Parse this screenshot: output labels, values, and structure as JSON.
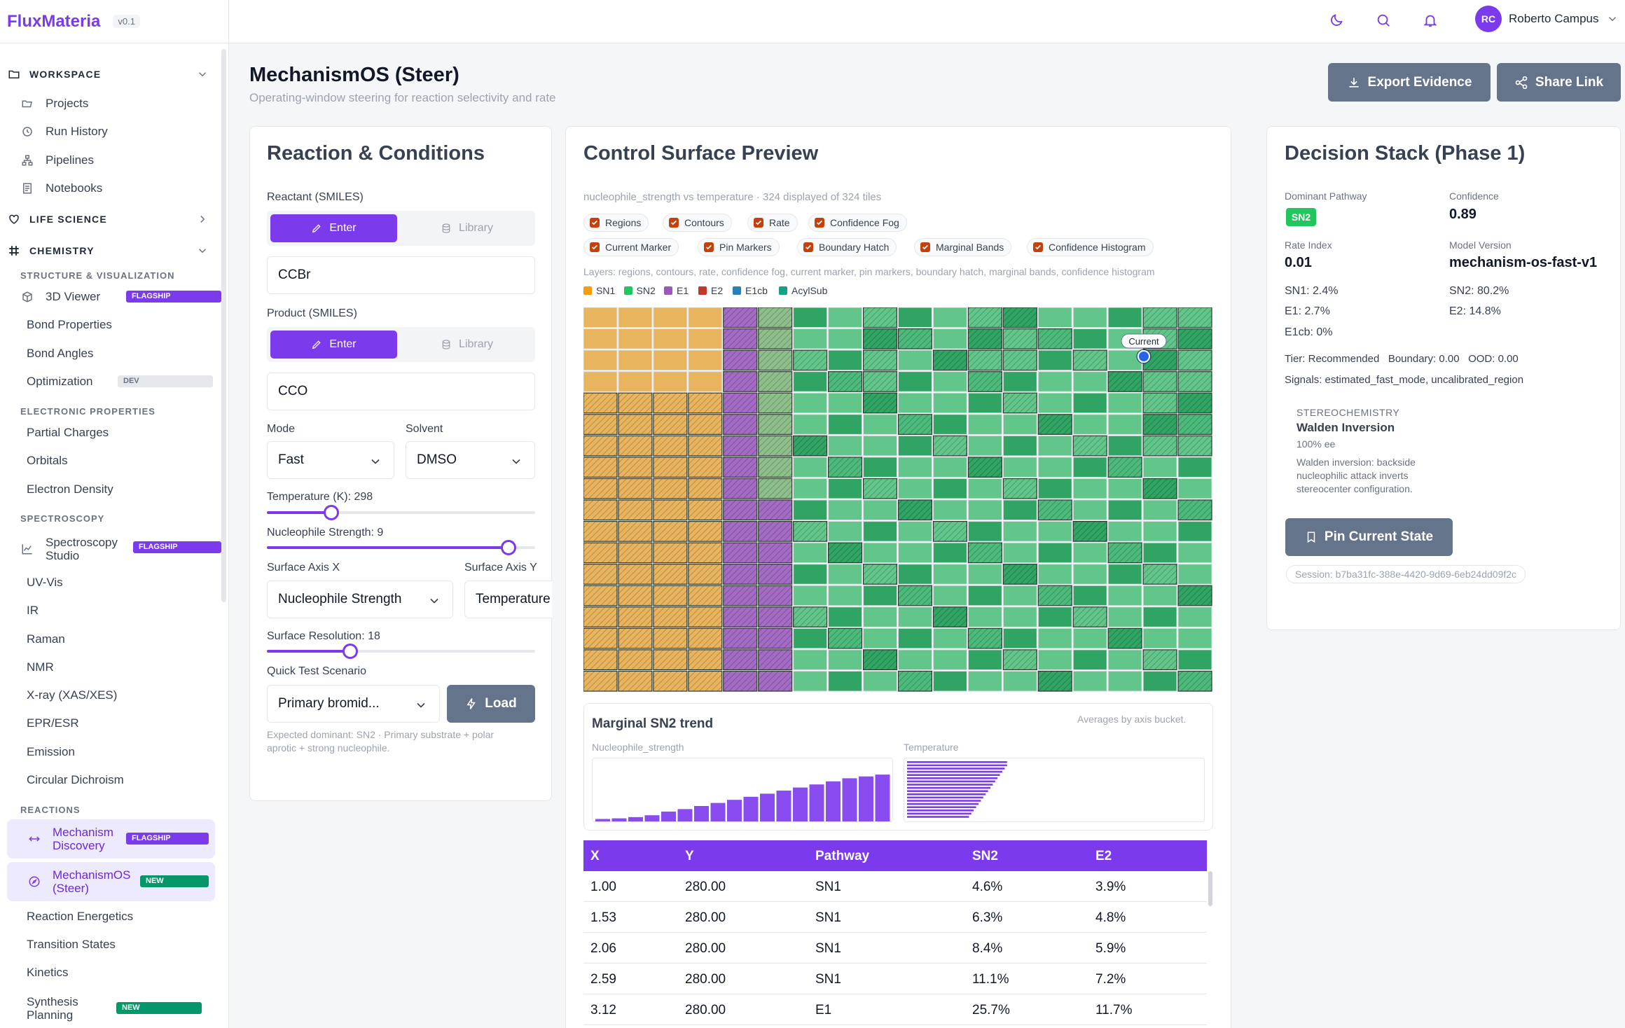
{
  "app": {
    "name": "FluxMateria",
    "version": "v0.1"
  },
  "sidebar": {
    "sections": {
      "workspace": "WORKSPACE",
      "life_science": "LIFE SCIENCE",
      "chemistry": "CHEMISTRY"
    },
    "workspace_items": [
      "Projects",
      "Run History",
      "Pipelines",
      "Notebooks"
    ],
    "groups": {
      "structure": "STRUCTURE & VISUALIZATION",
      "electronic": "ELECTRONIC PROPERTIES",
      "spectroscopy": "SPECTROSCOPY",
      "reactions": "REACTIONS"
    },
    "structure_items": {
      "viewer": "3D Viewer",
      "bond_props": "Bond Properties",
      "bond_angles": "Bond Angles",
      "optimization": "Optimization"
    },
    "electronic_items": [
      "Partial Charges",
      "Orbitals",
      "Electron Density"
    ],
    "spectroscopy_studio": {
      "line1": "Spectroscopy",
      "line2": "Studio"
    },
    "spectroscopy_items": [
      "UV-Vis",
      "IR",
      "Raman",
      "NMR",
      "X-ray (XAS/XES)",
      "EPR/ESR",
      "Emission",
      "Circular Dichroism"
    ],
    "mechanism_discovery": {
      "line1": "Mechanism",
      "line2": "Discovery"
    },
    "mechanismos": {
      "line1": "MechanismOS",
      "line2": "(Steer)"
    },
    "reaction_items": [
      "Reaction Energetics",
      "Transition States",
      "Kinetics"
    ],
    "synthesis": {
      "line1": "Synthesis",
      "line2": "Planning"
    },
    "badges": {
      "flagship": "FLAGSHIP",
      "dev": "DEV",
      "new": "NEW"
    }
  },
  "topbar": {
    "user_initials": "RC",
    "user_name": "Roberto Campus"
  },
  "header": {
    "title": "MechanismOS (Steer)",
    "subtitle": "Operating-window steering for reaction selectivity and rate",
    "export_label": "Export Evidence",
    "share_label": "Share Link"
  },
  "reaction": {
    "title": "Reaction & Conditions",
    "reactant_label": "Reactant (SMILES)",
    "product_label": "Product (SMILES)",
    "enter_label": "Enter",
    "library_label": "Library",
    "reactant_value": "CCBr",
    "product_value": "CCO",
    "mode_label": "Mode",
    "mode_value": "Fast",
    "solvent_label": "Solvent",
    "solvent_value": "DMSO",
    "temperature_label": "Temperature (K): 298",
    "temperature_fraction": 0.24,
    "nucleophile_label": "Nucleophile Strength: 9",
    "nucleophile_fraction": 0.9,
    "axis_x_label": "Surface Axis X",
    "axis_x_value": "Nucleophile Strength",
    "axis_y_label": "Surface Axis Y",
    "axis_y_value": "Temperature",
    "resolution_label": "Surface Resolution: 18",
    "resolution_fraction": 0.31,
    "scenario_label": "Quick Test Scenario",
    "scenario_value": "Primary bromid...",
    "load_label": "Load",
    "expected_line1": "Expected dominant: SN2 · Primary substrate + polar",
    "expected_line2": "aprotic + strong nucleophile."
  },
  "surface": {
    "title": "Control Surface Preview",
    "caption": "nucleophile_strength vs temperature · 324 displayed of 324 tiles",
    "toggles": [
      "Regions",
      "Contours",
      "Rate",
      "Confidence Fog",
      "Current Marker",
      "Pin Markers",
      "Boundary Hatch",
      "Marginal Bands",
      "Confidence Histogram"
    ],
    "layers_text": "Layers: regions, contours, rate, confidence fog, current marker, pin markers, boundary hatch, marginal bands, confidence histogram",
    "legend": [
      {
        "name": "SN1",
        "color": "#f59e0b"
      },
      {
        "name": "SN2",
        "color": "#22c55e"
      },
      {
        "name": "E1",
        "color": "#9b59b6"
      },
      {
        "name": "E2",
        "color": "#c0392b"
      },
      {
        "name": "E1cb",
        "color": "#2980b9"
      },
      {
        "name": "AcylSub",
        "color": "#16a085"
      }
    ],
    "current_label": "Current",
    "marginal_title": "Marginal SN2 trend",
    "marginal_note": "Averages by axis bucket.",
    "marginal_x_label": "Nucleophile_strength",
    "marginal_y_label": "Temperature"
  },
  "chart_data": {
    "type": "heatmap",
    "title": "Control Surface Preview",
    "xlabel": "nucleophile_strength",
    "ylabel": "temperature",
    "grid_size": [
      18,
      18
    ],
    "categories": [
      "SN1",
      "E1",
      "SN2"
    ],
    "marginal_x_values": [
      0.04,
      0.05,
      0.07,
      0.1,
      0.16,
      0.2,
      0.25,
      0.3,
      0.35,
      0.4,
      0.45,
      0.5,
      0.55,
      0.6,
      0.65,
      0.7,
      0.73,
      0.76
    ],
    "marginal_y_values": [
      0.42,
      0.42,
      0.41,
      0.4,
      0.39,
      0.38,
      0.37,
      0.36,
      0.35,
      0.34,
      0.33,
      0.32,
      0.31,
      0.3,
      0.29,
      0.28,
      0.27,
      0.26
    ]
  },
  "table": {
    "headers": [
      "X",
      "Y",
      "Pathway",
      "SN2",
      "E2"
    ],
    "rows": [
      [
        "1.00",
        "280.00",
        "SN1",
        "4.6%",
        "3.9%"
      ],
      [
        "1.53",
        "280.00",
        "SN1",
        "6.3%",
        "4.8%"
      ],
      [
        "2.06",
        "280.00",
        "SN1",
        "8.4%",
        "5.9%"
      ],
      [
        "2.59",
        "280.00",
        "SN1",
        "11.1%",
        "7.2%"
      ],
      [
        "3.12",
        "280.00",
        "E1",
        "25.7%",
        "11.7%"
      ]
    ]
  },
  "decision": {
    "title": "Decision Stack (Phase 1)",
    "dominant_label": "Dominant Pathway",
    "dominant_value": "SN2",
    "confidence_label": "Confidence",
    "confidence_value": "0.89",
    "rate_label": "Rate Index",
    "rate_value": "0.01",
    "model_label": "Model Version",
    "model_value": "mechanism-os-fast-v1",
    "sn1": "SN1: 2.4%",
    "sn2": "SN2: 80.2%",
    "e1": "E1: 2.7%",
    "e2": "E2: 14.8%",
    "e1cb": "E1cb: 0%",
    "tier": "Tier: Recommended   Boundary: 0.00   OOD: 0.00",
    "signals": "Signals: estimated_fast_mode, uncalibrated_region",
    "stereo_label": "STEREOCHEMISTRY",
    "stereo_title": "Walden Inversion",
    "stereo_ee": "100% ee",
    "stereo_desc1": "Walden inversion: backside",
    "stereo_desc2": "nucleophilic attack inverts",
    "stereo_desc3": "stereocenter configuration.",
    "pin_label": "Pin Current State",
    "session": "Session: b7ba31fc-388e-4420-9d69-6eb24dd09f2c"
  },
  "colors": {
    "accent": "#7c3aed",
    "sn1": "#e9b45e",
    "e1": "#a36bc4",
    "sn2": "#4cba7a",
    "sn2_light": "#62c58a",
    "sn2_dark": "#2fa463"
  }
}
